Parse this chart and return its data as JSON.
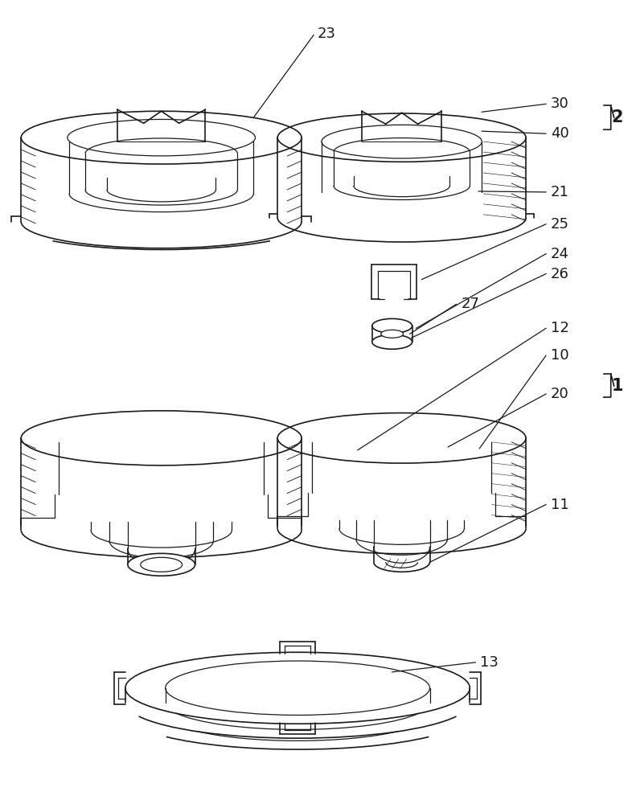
{
  "bg_color": "#ffffff",
  "line_color": "#1a1a1a",
  "line_width": 1.2,
  "annotation_fontsize": 13,
  "fig_width": 7.91,
  "fig_height": 10.0,
  "dpi": 100
}
